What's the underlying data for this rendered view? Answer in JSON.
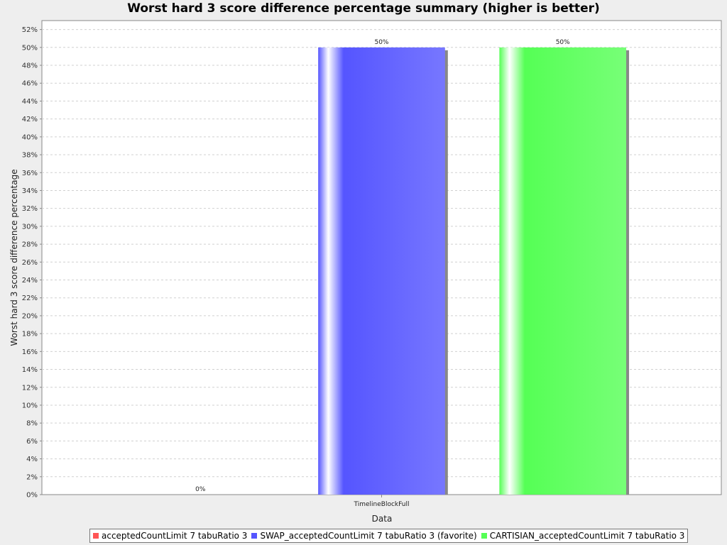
{
  "chart_data": {
    "type": "bar",
    "title": "Worst hard 3 score difference percentage summary (higher is better)",
    "xlabel": "Data",
    "ylabel": "Worst hard 3 score difference percentage",
    "categories": [
      "TimelineBlockFull"
    ],
    "series": [
      {
        "name": "acceptedCountLimit 7 tabuRatio 3",
        "values": [
          0
        ],
        "color": "#ff5555",
        "label": "0%"
      },
      {
        "name": "SWAP_acceptedCountLimit 7 tabuRatio 3 (favorite)",
        "values": [
          50
        ],
        "color": "#5555ff",
        "label": "50%"
      },
      {
        "name": "CARTISIAN_acceptedCountLimit 7 tabuRatio 3",
        "values": [
          50
        ],
        "color": "#55ff55",
        "label": "50%"
      }
    ],
    "ylim": [
      0,
      53
    ],
    "yticks": [
      0,
      2,
      4,
      6,
      8,
      10,
      12,
      14,
      16,
      18,
      20,
      22,
      24,
      26,
      28,
      30,
      32,
      34,
      36,
      38,
      40,
      42,
      44,
      46,
      48,
      50,
      52
    ],
    "ytick_suffix": "%",
    "grid": true,
    "legend_position": "bottom"
  }
}
